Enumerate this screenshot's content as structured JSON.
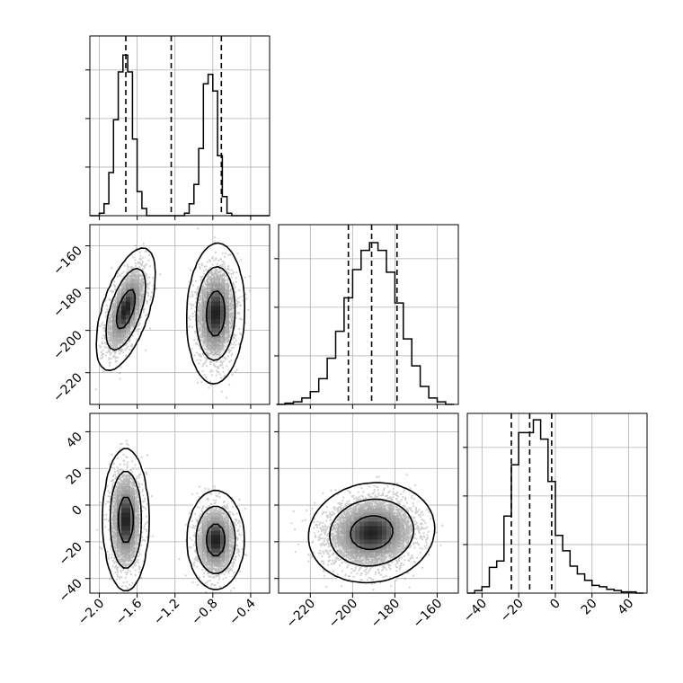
{
  "chart_data": {
    "type": "corner",
    "parameters": [
      {
        "range": [
          -2.1,
          -0.2
        ],
        "ticks": [
          -2.0,
          -1.6,
          -1.2,
          -0.8,
          -0.4
        ],
        "tick_labels": [
          "−2.0",
          "−1.6",
          "−1.2",
          "−0.8",
          "−0.4"
        ]
      },
      {
        "range": [
          -235,
          -150
        ],
        "ticks": [
          -220,
          -200,
          -180,
          -160
        ],
        "tick_labels": [
          "−220",
          "−200",
          "−180",
          "−160"
        ]
      },
      {
        "range": [
          -48,
          50
        ],
        "ticks": [
          -40,
          -20,
          0,
          20,
          40
        ],
        "tick_labels": [
          "−40",
          "−20",
          "0",
          "20",
          "40"
        ]
      }
    ],
    "histograms": [
      {
        "parameter": 0,
        "bin_edges": [
          -2.1,
          -2.05,
          -2.0,
          -1.95,
          -1.9,
          -1.85,
          -1.8,
          -1.75,
          -1.7,
          -1.65,
          -1.6,
          -1.55,
          -1.5,
          -1.45,
          -1.4,
          -1.35,
          -1.3,
          -1.25,
          -1.2,
          -1.15,
          -1.1,
          -1.05,
          -1.0,
          -0.95,
          -0.9,
          -0.85,
          -0.8,
          -0.75,
          -0.7,
          -0.65,
          -0.6,
          -0.55,
          -0.5,
          -0.45,
          -0.4,
          -0.35,
          -0.3,
          -0.25,
          -0.2
        ],
        "counts": [
          0,
          0,
          1,
          5,
          18,
          40,
          60,
          67,
          60,
          32,
          10,
          3,
          0,
          0,
          0,
          0,
          0,
          0,
          0,
          0,
          1,
          5,
          13,
          28,
          55,
          59,
          52,
          25,
          8,
          1,
          0,
          0,
          0,
          0,
          0,
          0,
          0,
          0
        ],
        "quantiles": [
          -1.72,
          -1.24,
          -0.71
        ],
        "ylim": [
          0,
          75
        ]
      },
      {
        "parameter": 1,
        "bin_edges": [
          -236,
          -232,
          -228,
          -224,
          -220,
          -216,
          -212,
          -208,
          -204,
          -200,
          -196,
          -192,
          -188,
          -184,
          -180,
          -176,
          -172,
          -168,
          -164,
          -160,
          -156,
          -152
        ],
        "counts": [
          0,
          1,
          2,
          5,
          10,
          20,
          36,
          57,
          83,
          105,
          120,
          126,
          120,
          103,
          79,
          51,
          30,
          14,
          5,
          2,
          0
        ],
        "quantiles": [
          -202,
          -191,
          -179
        ],
        "ylim": [
          0,
          140
        ]
      },
      {
        "parameter": 2,
        "bin_edges": [
          -48,
          -44,
          -40,
          -36,
          -32,
          -28,
          -24,
          -20,
          -16,
          -12,
          -8,
          -4,
          0,
          4,
          8,
          12,
          16,
          20,
          24,
          28,
          32,
          36,
          40,
          44,
          48
        ],
        "counts": [
          0,
          2,
          5,
          20,
          25,
          60,
          100,
          125,
          125,
          135,
          120,
          87,
          45,
          33,
          21,
          15,
          10,
          6,
          5,
          3,
          2,
          1,
          1,
          0
        ],
        "quantiles": [
          -24,
          -14,
          -2
        ],
        "ylim": [
          0,
          140
        ]
      }
    ],
    "joint_panels": [
      {
        "x_param": 0,
        "y_param": 1,
        "clusters": [
          {
            "center": [
              -1.72,
              -190
            ],
            "sd": [
              0.08,
              10
            ],
            "rotation_deg": 72,
            "n": 2200
          },
          {
            "center": [
              -0.77,
              -192
            ],
            "sd": [
              0.1,
              11
            ],
            "rotation_deg": 88,
            "n": 2200
          }
        ]
      },
      {
        "x_param": 0,
        "y_param": 2,
        "clusters": [
          {
            "center": [
              -1.72,
              -8
            ],
            "sd": [
              0.08,
              13
            ],
            "rotation_deg": 90,
            "n": 2200
          },
          {
            "center": [
              -0.77,
              -19
            ],
            "sd": [
              0.1,
              9
            ],
            "rotation_deg": 90,
            "n": 2200
          }
        ]
      },
      {
        "x_param": 1,
        "y_param": 2,
        "clusters": [
          {
            "center": [
              -191,
              -15
            ],
            "sd": [
              10,
              9
            ],
            "rotation_deg": 10,
            "n": 4400
          }
        ]
      }
    ],
    "contour_levels": [
      0.393,
      0.865,
      0.989
    ],
    "grid": true,
    "colors": {
      "line": "#000000",
      "points": "#000000",
      "grid": "#b0b0b0",
      "spine": "#000000"
    }
  }
}
